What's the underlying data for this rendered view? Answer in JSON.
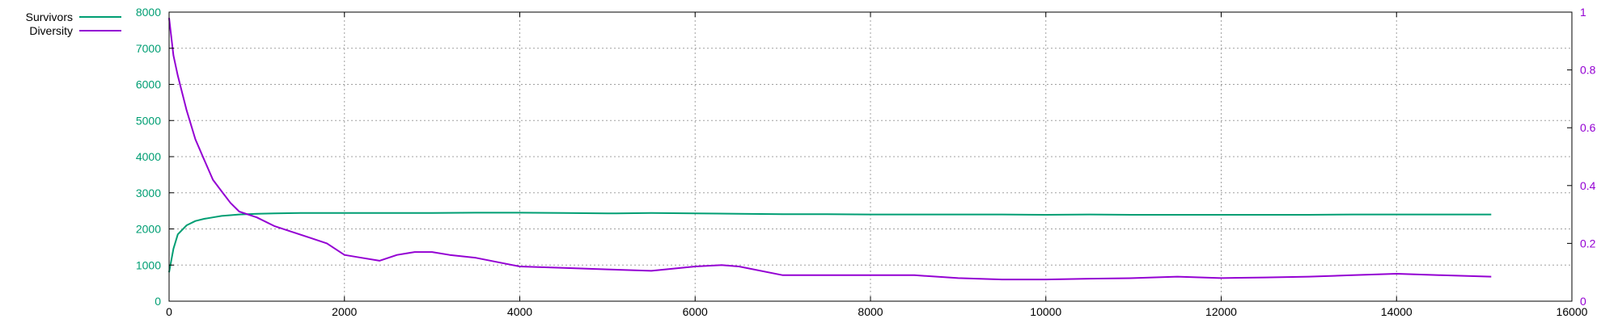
{
  "chart_data": {
    "type": "line",
    "title": "",
    "xlabel": "",
    "ylabel": "",
    "y2label": "",
    "xlim": [
      0,
      16000
    ],
    "ylim": [
      0,
      8000
    ],
    "y2lim": [
      0,
      1
    ],
    "grid": true,
    "legend_position": "top-left",
    "x_ticks": [
      0,
      2000,
      4000,
      6000,
      8000,
      10000,
      12000,
      14000,
      16000
    ],
    "y_ticks": [
      0,
      1000,
      2000,
      3000,
      4000,
      5000,
      6000,
      7000,
      8000
    ],
    "y2_ticks": [
      0,
      0.2,
      0.4,
      0.6,
      0.8,
      1
    ],
    "x_tick_labels": [
      "0",
      "2000",
      "4000",
      "6000",
      "8000",
      "10000",
      "12000",
      "14000",
      "16000"
    ],
    "y_tick_labels": [
      "0",
      "1000",
      "2000",
      "3000",
      "4000",
      "5000",
      "6000",
      "7000",
      "8000"
    ],
    "y2_tick_labels": [
      "0",
      "0.2",
      "0.4",
      "0.6",
      "0.8",
      "1"
    ],
    "series": [
      {
        "name": "Survivors",
        "axis": "left",
        "color": "#009e73",
        "x": [
          0,
          50,
          100,
          200,
          300,
          400,
          500,
          600,
          700,
          800,
          1000,
          1200,
          1500,
          2000,
          2500,
          3000,
          3500,
          4000,
          4500,
          5000,
          5500,
          6000,
          6500,
          7000,
          7500,
          8000,
          8500,
          9000,
          9500,
          10000,
          10500,
          11000,
          11500,
          12000,
          12500,
          13000,
          13500,
          14000,
          14500,
          15080
        ],
        "values": [
          800,
          1450,
          1850,
          2100,
          2220,
          2280,
          2320,
          2360,
          2380,
          2400,
          2420,
          2430,
          2440,
          2440,
          2440,
          2440,
          2450,
          2450,
          2440,
          2430,
          2440,
          2430,
          2420,
          2410,
          2410,
          2400,
          2400,
          2400,
          2400,
          2390,
          2400,
          2390,
          2390,
          2390,
          2390,
          2390,
          2400,
          2400,
          2400,
          2400
        ]
      },
      {
        "name": "Diversity",
        "axis": "right",
        "color": "#9400d3",
        "x": [
          0,
          50,
          100,
          200,
          300,
          400,
          500,
          600,
          700,
          800,
          1000,
          1200,
          1400,
          1600,
          1800,
          2000,
          2200,
          2400,
          2600,
          2800,
          3000,
          3200,
          3500,
          4000,
          4500,
          5000,
          5500,
          6000,
          6300,
          6500,
          7000,
          7500,
          8000,
          8500,
          9000,
          9500,
          10000,
          10500,
          11000,
          11500,
          12000,
          12500,
          13000,
          13500,
          14000,
          14500,
          15080
        ],
        "values": [
          0.98,
          0.85,
          0.78,
          0.66,
          0.56,
          0.49,
          0.42,
          0.38,
          0.34,
          0.31,
          0.29,
          0.26,
          0.24,
          0.22,
          0.2,
          0.16,
          0.15,
          0.14,
          0.16,
          0.17,
          0.17,
          0.16,
          0.15,
          0.12,
          0.115,
          0.11,
          0.105,
          0.12,
          0.125,
          0.12,
          0.09,
          0.09,
          0.09,
          0.09,
          0.08,
          0.075,
          0.075,
          0.078,
          0.08,
          0.085,
          0.08,
          0.082,
          0.085,
          0.09,
          0.095,
          0.09,
          0.085
        ]
      }
    ]
  }
}
